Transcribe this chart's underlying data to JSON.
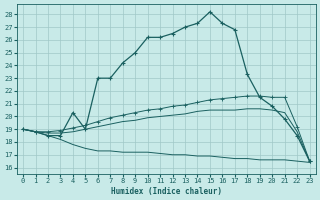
{
  "xlabel": "Humidex (Indice chaleur)",
  "background_color": "#c8eae8",
  "grid_color": "#a0c8c8",
  "line_color": "#1a6060",
  "xlim": [
    -0.5,
    23.5
  ],
  "ylim": [
    15.5,
    28.8
  ],
  "xticks": [
    0,
    1,
    2,
    3,
    4,
    5,
    6,
    7,
    8,
    9,
    10,
    11,
    12,
    13,
    14,
    15,
    16,
    17,
    18,
    19,
    20,
    21,
    22,
    23
  ],
  "yticks": [
    16,
    17,
    18,
    19,
    20,
    21,
    22,
    23,
    24,
    25,
    26,
    27,
    28
  ],
  "series": {
    "main": {
      "x": [
        0,
        1,
        2,
        3,
        4,
        5,
        6,
        7,
        8,
        9,
        10,
        11,
        12,
        13,
        14,
        15,
        16,
        17,
        18,
        19,
        20,
        21,
        22,
        23
      ],
      "y": [
        19.0,
        18.8,
        18.5,
        18.5,
        20.3,
        19.0,
        23.0,
        23.0,
        24.2,
        25.0,
        26.2,
        26.2,
        26.5,
        27.0,
        27.3,
        28.2,
        27.3,
        26.8,
        23.3,
        21.5,
        20.8,
        19.8,
        18.5,
        16.5
      ]
    },
    "upper_high": {
      "x": [
        0,
        1,
        2,
        3,
        4,
        5,
        6,
        7,
        8,
        9,
        10,
        11,
        12,
        13,
        14,
        15,
        16,
        17,
        18,
        19,
        20,
        21,
        22,
        23
      ],
      "y": [
        19.0,
        18.8,
        18.8,
        18.9,
        19.1,
        19.3,
        19.6,
        19.9,
        20.1,
        20.3,
        20.5,
        20.6,
        20.8,
        20.9,
        21.1,
        21.3,
        21.4,
        21.5,
        21.6,
        21.6,
        21.5,
        21.5,
        19.2,
        16.5
      ]
    },
    "upper_low": {
      "x": [
        0,
        1,
        2,
        3,
        4,
        5,
        6,
        7,
        8,
        9,
        10,
        11,
        12,
        13,
        14,
        15,
        16,
        17,
        18,
        19,
        20,
        21,
        22,
        23
      ],
      "y": [
        19.0,
        18.8,
        18.7,
        18.7,
        18.8,
        19.0,
        19.2,
        19.4,
        19.6,
        19.7,
        19.9,
        20.0,
        20.1,
        20.2,
        20.4,
        20.5,
        20.5,
        20.5,
        20.6,
        20.6,
        20.5,
        20.3,
        18.8,
        16.5
      ]
    },
    "lower": {
      "x": [
        0,
        1,
        2,
        3,
        4,
        5,
        6,
        7,
        8,
        9,
        10,
        11,
        12,
        13,
        14,
        15,
        16,
        17,
        18,
        19,
        20,
        21,
        22,
        23
      ],
      "y": [
        19.0,
        18.8,
        18.5,
        18.2,
        17.8,
        17.5,
        17.3,
        17.3,
        17.2,
        17.2,
        17.2,
        17.1,
        17.0,
        17.0,
        16.9,
        16.9,
        16.8,
        16.7,
        16.7,
        16.6,
        16.6,
        16.6,
        16.5,
        16.4
      ]
    }
  }
}
